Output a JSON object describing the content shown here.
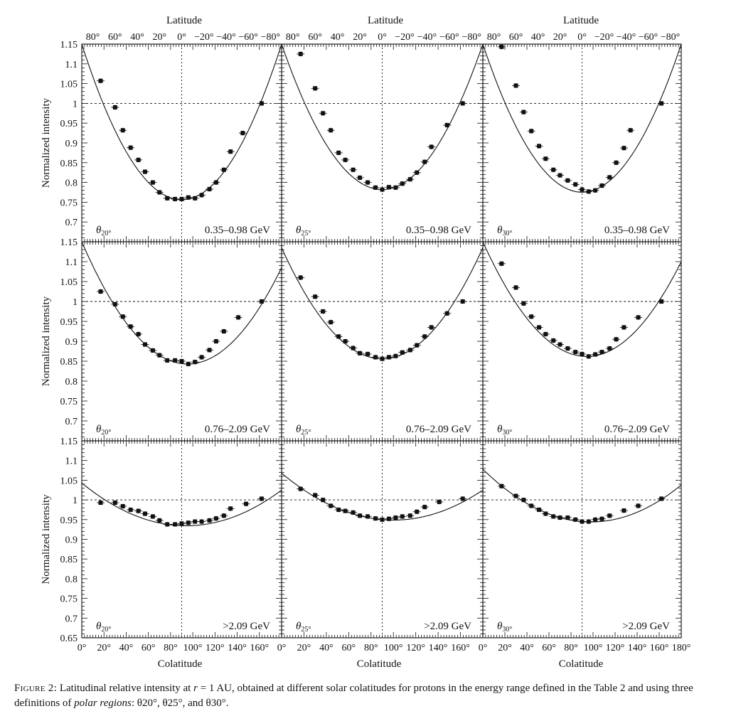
{
  "figure": {
    "top_axis_label": "Latitude",
    "bottom_axis_label": "Colatitude",
    "y_axis_label": "Normalized intensity",
    "top_tick_labels": [
      "80°",
      "60°",
      "40°",
      "20°",
      "0°",
      "−20°",
      "−40°",
      "−60°",
      "−80°"
    ],
    "bottom_tick_labels_first": [
      "0°",
      "20°",
      "40°",
      "60°",
      "80°",
      "100°",
      "120°",
      "140°",
      "160°"
    ],
    "bottom_tick_labels_last": [
      "0°",
      "20°",
      "40°",
      "60°",
      "80°",
      "100°",
      "120°",
      "140°",
      "160°",
      "180°"
    ],
    "y_tick_labels": [
      "0.7",
      "0.75",
      "0.8",
      "0.85",
      "0.9",
      "0.95",
      "1",
      "1.05",
      "1.1",
      "1.15"
    ],
    "y_tick_bottom_label": "0.65"
  },
  "caption": {
    "label": "Figure 2:",
    "text_before_r": " Latitudinal relative intensity at ",
    "r_symbol": "r",
    "r_value": " = 1 AU, obtained at different solar colatitudes for protons in the energy range defined in the Table 2 and using three definitions of ",
    "polar_regions": "polar regions",
    "text_end": ": θ20°, θ25°, and θ30°."
  },
  "chart_data": {
    "type": "scatter",
    "xlabel": "Colatitude",
    "ylabel": "Normalized intensity",
    "xlabel_top": "Latitude",
    "xlim": [
      0,
      180
    ],
    "ylim": [
      0.65,
      1.15
    ],
    "grid": false,
    "reference_lines": {
      "y": 1,
      "x": 90
    },
    "x": [
      17,
      30,
      37,
      44,
      51,
      57,
      64,
      70,
      77,
      84,
      90,
      96,
      102,
      108,
      115,
      121,
      128,
      134,
      141,
      148,
      155,
      162
    ],
    "panels": [
      {
        "row": 0,
        "col": 0,
        "region": "θ20°",
        "energy": "0.35–0.98 GeV",
        "values": [
          1.057,
          0.99,
          0.932,
          0.888,
          0.857,
          0.827,
          0.8,
          0.775,
          0.76,
          0.758,
          0.758,
          0.762,
          0.76,
          0.768,
          0.783,
          0.8,
          0.832,
          0.878,
          0.925,
          1.0
        ],
        "first_x_index": 0,
        "x": [
          17,
          30,
          37,
          44,
          51,
          57,
          64,
          70,
          77,
          84,
          90,
          96,
          102,
          108,
          115,
          121,
          128,
          134,
          145,
          162
        ],
        "fit_ends": [
          1.15,
          1.15
        ]
      },
      {
        "row": 0,
        "col": 1,
        "region": "θ25°",
        "energy": "0.35–0.98 GeV",
        "values": [
          1.125,
          1.038,
          0.975,
          0.932,
          0.875,
          0.857,
          0.832,
          0.812,
          0.8,
          0.787,
          0.782,
          0.788,
          0.787,
          0.797,
          0.808,
          0.825,
          0.852,
          0.89,
          0.945,
          1.0
        ],
        "x": [
          17,
          30,
          37,
          44,
          51,
          57,
          64,
          70,
          77,
          84,
          90,
          96,
          102,
          108,
          115,
          121,
          128,
          134,
          148,
          162
        ],
        "fit_ends": [
          1.15,
          1.15
        ]
      },
      {
        "row": 0,
        "col": 2,
        "region": "θ30°",
        "energy": "0.35–0.98 GeV",
        "values": [
          1.143,
          1.045,
          0.978,
          0.93,
          0.892,
          0.86,
          0.832,
          0.818,
          0.805,
          0.795,
          0.782,
          0.777,
          0.78,
          0.792,
          0.813,
          0.85,
          0.887,
          0.932,
          1.0
        ],
        "x": [
          17,
          30,
          37,
          44,
          51,
          57,
          64,
          70,
          77,
          84,
          90,
          96,
          102,
          108,
          115,
          121,
          128,
          134,
          162
        ],
        "fit_ends": [
          1.15,
          1.15
        ]
      },
      {
        "row": 1,
        "col": 0,
        "region": "θ20°",
        "energy": "0.76–2.09 GeV",
        "values": [
          1.025,
          0.993,
          0.962,
          0.937,
          0.918,
          0.892,
          0.877,
          0.865,
          0.852,
          0.852,
          0.85,
          0.843,
          0.848,
          0.86,
          0.878,
          0.9,
          0.925,
          0.96,
          1.0
        ],
        "x": [
          17,
          30,
          37,
          44,
          51,
          57,
          64,
          70,
          77,
          84,
          90,
          96,
          102,
          108,
          115,
          121,
          128,
          141,
          162
        ],
        "fit_ends": [
          1.15,
          1.085
        ]
      },
      {
        "row": 1,
        "col": 1,
        "region": "θ25°",
        "energy": "0.76–2.09 GeV",
        "values": [
          1.06,
          1.012,
          0.975,
          0.948,
          0.912,
          0.9,
          0.883,
          0.87,
          0.868,
          0.86,
          0.856,
          0.86,
          0.863,
          0.872,
          0.878,
          0.89,
          0.912,
          0.935,
          0.97,
          1.0
        ],
        "x": [
          17,
          30,
          37,
          44,
          51,
          57,
          64,
          70,
          77,
          84,
          90,
          96,
          102,
          108,
          115,
          121,
          128,
          134,
          148,
          162
        ],
        "fit_ends": [
          1.135,
          1.135
        ]
      },
      {
        "row": 1,
        "col": 2,
        "region": "θ30°",
        "energy": "0.76–2.09 GeV",
        "values": [
          1.095,
          1.035,
          0.995,
          0.962,
          0.935,
          0.918,
          0.902,
          0.892,
          0.882,
          0.873,
          0.868,
          0.862,
          0.867,
          0.873,
          0.882,
          0.905,
          0.935,
          0.96,
          1.0
        ],
        "x": [
          17,
          30,
          37,
          44,
          51,
          57,
          64,
          70,
          77,
          84,
          90,
          96,
          102,
          108,
          115,
          121,
          128,
          141,
          162
        ],
        "fit_ends": [
          1.15,
          1.1
        ]
      },
      {
        "row": 2,
        "col": 0,
        "region": "θ20°",
        "energy": ">2.09 GeV",
        "values": [
          0.993,
          0.993,
          0.984,
          0.975,
          0.972,
          0.965,
          0.958,
          0.948,
          0.938,
          0.938,
          0.94,
          0.942,
          0.945,
          0.945,
          0.948,
          0.953,
          0.96,
          0.978,
          0.99,
          1.003
        ],
        "x": [
          17,
          30,
          37,
          44,
          51,
          57,
          64,
          70,
          77,
          84,
          90,
          96,
          102,
          108,
          115,
          121,
          128,
          134,
          148,
          162
        ],
        "fit_ends": [
          1.043,
          1.025
        ]
      },
      {
        "row": 2,
        "col": 1,
        "region": "θ25°",
        "energy": ">2.09 GeV",
        "values": [
          1.028,
          1.012,
          1.0,
          0.985,
          0.975,
          0.972,
          0.968,
          0.96,
          0.958,
          0.953,
          0.95,
          0.952,
          0.955,
          0.958,
          0.96,
          0.97,
          0.982,
          0.995,
          1.003
        ],
        "x": [
          17,
          30,
          37,
          44,
          51,
          57,
          64,
          70,
          77,
          84,
          90,
          96,
          102,
          108,
          115,
          121,
          128,
          141,
          162
        ],
        "fit_ends": [
          1.068,
          1.025
        ]
      },
      {
        "row": 2,
        "col": 2,
        "region": "θ30°",
        "energy": ">2.09 GeV",
        "values": [
          1.035,
          1.01,
          1.0,
          0.985,
          0.975,
          0.965,
          0.958,
          0.955,
          0.955,
          0.95,
          0.945,
          0.945,
          0.95,
          0.952,
          0.96,
          0.973,
          0.985,
          1.003
        ],
        "x": [
          17,
          30,
          37,
          44,
          51,
          57,
          64,
          70,
          77,
          84,
          90,
          96,
          102,
          108,
          115,
          128,
          141,
          162
        ],
        "fit_ends": [
          1.078,
          1.038
        ]
      }
    ],
    "region_labels": [
      "θ20°",
      "θ25°",
      "θ30°"
    ],
    "energy_labels": [
      "0.35–0.98 GeV",
      "0.76–2.09 GeV",
      ">2.09 GeV"
    ]
  }
}
